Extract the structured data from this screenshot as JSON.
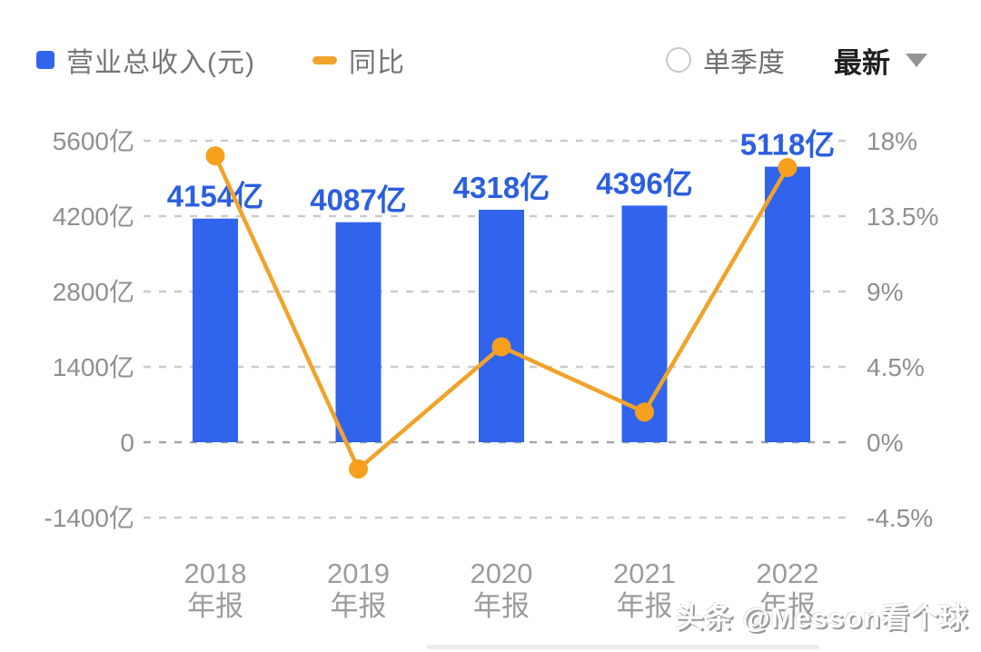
{
  "header": {
    "legend": [
      {
        "label": "营业总收入(元)",
        "swatch": "square",
        "color": "#3164ec"
      },
      {
        "label": "同比",
        "swatch": "dash",
        "color": "#f0a32a"
      }
    ],
    "radio_label": "单季度",
    "dropdown_label": "最新"
  },
  "chart_data": {
    "type": "bar",
    "subtype": "bar+line combo, dual axis",
    "categories": [
      "2018 年报",
      "2019 年报",
      "2020 年报",
      "2021 年报",
      "2022 年报"
    ],
    "x_tick_lines": [
      [
        "2018",
        "年报"
      ],
      [
        "2019",
        "年报"
      ],
      [
        "2020",
        "年报"
      ],
      [
        "2021",
        "年报"
      ],
      [
        "2022",
        "年报"
      ]
    ],
    "series": [
      {
        "name": "营业总收入(元)",
        "type": "bar",
        "axis": "left",
        "unit": "亿",
        "values": [
          4154,
          4087,
          4318,
          4396,
          5118
        ],
        "labels": [
          "4154亿",
          "4087亿",
          "4318亿",
          "4396亿",
          "5118亿"
        ],
        "color": "#3164ec",
        "label_color": "#2b5fe0"
      },
      {
        "name": "同比",
        "type": "line",
        "axis": "right",
        "unit": "%",
        "values": [
          17.1,
          -1.6,
          5.7,
          1.8,
          16.4
        ],
        "color": "#f0a32a",
        "dot_color": "#f6a01e"
      }
    ],
    "left_axis": {
      "ticks": [
        "5600亿",
        "4200亿",
        "2800亿",
        "1400亿",
        "0",
        "-1400亿"
      ],
      "values": [
        5600,
        4200,
        2800,
        1400,
        0,
        -1400
      ],
      "range": [
        -1400,
        5600
      ]
    },
    "right_axis": {
      "ticks": [
        "18%",
        "13.5%",
        "9%",
        "4.5%",
        "0%",
        "-4.5%"
      ],
      "values": [
        18,
        13.5,
        9,
        4.5,
        0,
        -4.5
      ],
      "range": [
        -4.5,
        18
      ]
    },
    "grid": "dashed horizontal",
    "legend_position": "top-left",
    "tick_color": "#8f8f8f",
    "xlabel_color": "#9c9c9c",
    "grid_color": "#cbcbcb",
    "zero_grid_color": "#a6a6a6"
  },
  "watermark": "头条 @Messon看个球"
}
